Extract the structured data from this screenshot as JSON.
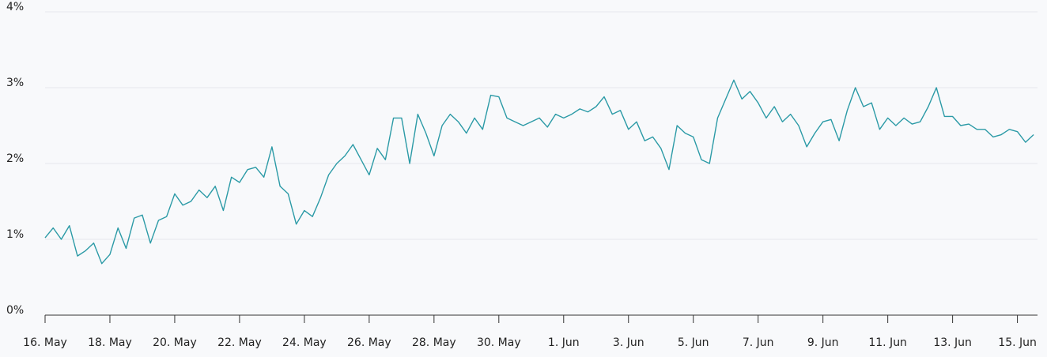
{
  "chart_data": {
    "type": "line",
    "x": [
      0,
      0.25,
      0.5,
      0.75,
      1,
      1.25,
      1.5,
      1.75,
      2,
      2.25,
      2.5,
      2.75,
      3,
      3.25,
      3.5,
      3.75,
      4,
      4.25,
      4.5,
      4.75,
      5,
      5.25,
      5.5,
      5.75,
      6,
      6.25,
      6.5,
      6.75,
      7,
      7.25,
      7.5,
      7.75,
      8,
      8.25,
      8.5,
      8.75,
      9,
      9.25,
      9.5,
      9.75,
      10,
      10.25,
      10.5,
      10.75,
      11,
      11.25,
      11.5,
      11.75,
      12,
      12.25,
      12.5,
      12.75,
      13,
      13.25,
      13.5,
      13.75,
      14,
      14.25,
      14.5,
      14.75,
      15,
      15.25,
      15.5,
      15.75,
      16,
      16.25,
      16.5,
      16.75,
      17,
      17.25,
      17.5,
      17.75,
      18,
      18.25,
      18.5,
      18.75,
      19,
      19.25,
      19.5,
      19.75,
      20,
      20.25,
      20.5,
      20.75,
      21,
      21.25,
      21.5,
      21.75,
      22,
      22.25,
      22.5,
      22.75,
      23,
      23.25,
      23.5,
      23.75,
      24,
      24.25,
      24.5,
      24.75,
      25,
      25.25,
      25.5,
      25.75,
      26,
      26.25,
      26.5,
      26.75,
      27,
      27.25,
      27.5,
      27.75,
      28,
      28.25,
      28.5,
      28.75,
      29,
      29.25,
      29.5,
      29.75,
      30,
      30.25,
      30.5
    ],
    "series": [
      {
        "color": "#2b9aa6",
        "values": [
          1.02,
          1.15,
          1.0,
          1.18,
          0.78,
          0.85,
          0.95,
          0.68,
          0.8,
          1.15,
          0.88,
          1.28,
          1.32,
          0.95,
          1.25,
          1.3,
          1.6,
          1.45,
          1.5,
          1.65,
          1.55,
          1.7,
          1.38,
          1.82,
          1.75,
          1.92,
          1.95,
          1.82,
          2.22,
          1.7,
          1.6,
          1.2,
          1.38,
          1.3,
          1.55,
          1.85,
          2.0,
          2.1,
          2.25,
          2.05,
          1.85,
          2.2,
          2.05,
          2.6,
          2.6,
          2.0,
          2.65,
          2.4,
          2.1,
          2.5,
          2.65,
          2.55,
          2.4,
          2.6,
          2.45,
          2.9,
          2.88,
          2.6,
          2.55,
          2.5,
          2.55,
          2.6,
          2.48,
          2.65,
          2.6,
          2.65,
          2.72,
          2.68,
          2.75,
          2.88,
          2.65,
          2.7,
          2.45,
          2.55,
          2.3,
          2.35,
          2.2,
          1.92,
          2.5,
          2.4,
          2.35,
          2.05,
          2.0,
          2.6,
          2.85,
          3.1,
          2.85,
          2.95,
          2.8,
          2.6,
          2.75,
          2.55,
          2.65,
          2.5,
          2.22,
          2.4,
          2.55,
          2.58,
          2.3,
          2.7,
          3.0,
          2.75,
          2.8,
          2.45,
          2.6,
          2.5,
          2.6,
          2.52,
          2.55,
          2.75,
          3.0,
          2.62,
          2.62,
          2.5,
          2.52,
          2.45,
          2.45,
          2.35,
          2.38,
          2.45,
          2.42,
          2.28,
          2.38
        ]
      }
    ],
    "xlim": [
      0,
      30.62
    ],
    "xticks": [
      {
        "value": 0,
        "label": "16. May"
      },
      {
        "value": 2,
        "label": "18. May"
      },
      {
        "value": 4,
        "label": "20. May"
      },
      {
        "value": 6,
        "label": "22. May"
      },
      {
        "value": 8,
        "label": "24. May"
      },
      {
        "value": 10,
        "label": "26. May"
      },
      {
        "value": 12,
        "label": "28. May"
      },
      {
        "value": 14,
        "label": "30. May"
      },
      {
        "value": 16,
        "label": "1. Jun"
      },
      {
        "value": 18,
        "label": "3. Jun"
      },
      {
        "value": 20,
        "label": "5. Jun"
      },
      {
        "value": 22,
        "label": "7. Jun"
      },
      {
        "value": 24,
        "label": "9. Jun"
      },
      {
        "value": 26,
        "label": "11. Jun"
      },
      {
        "value": 28,
        "label": "13. Jun"
      },
      {
        "value": 30,
        "label": "15. Jun"
      }
    ],
    "ylim": [
      0,
      4
    ],
    "yticks": [
      {
        "value": 0,
        "label": "0%"
      },
      {
        "value": 1,
        "label": "1%"
      },
      {
        "value": 2,
        "label": "2%"
      },
      {
        "value": 3,
        "label": "3%"
      },
      {
        "value": 4,
        "label": "4%"
      }
    ],
    "grid": true
  }
}
